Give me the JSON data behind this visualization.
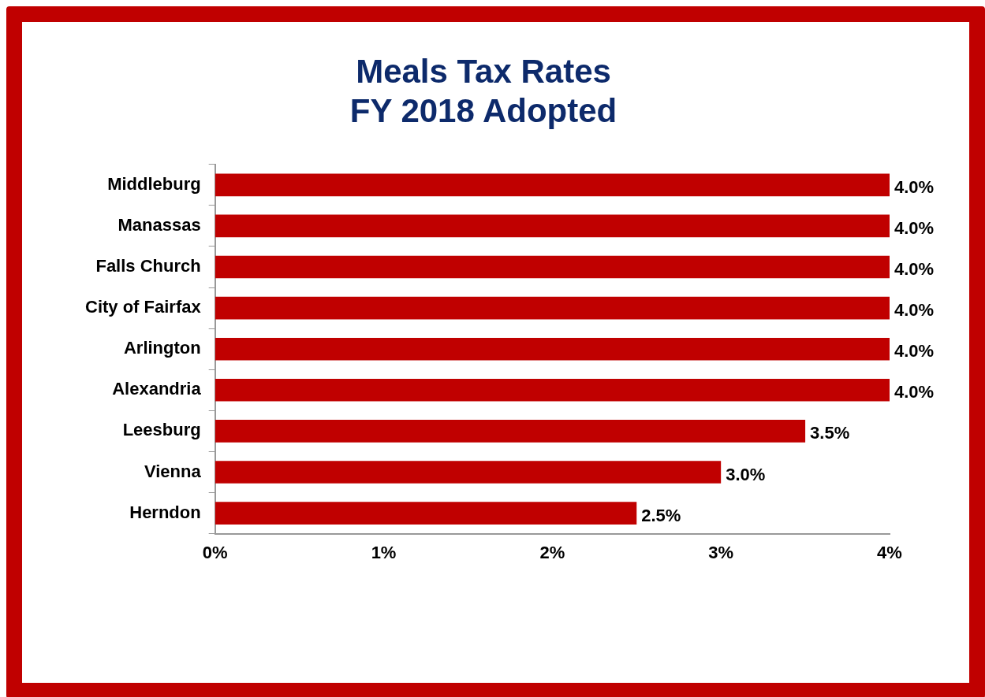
{
  "chart_data": {
    "type": "bar",
    "orientation": "horizontal",
    "title": "Meals Tax Rates\nFY 2018 Adopted",
    "categories": [
      "Middleburg",
      "Manassas",
      "Falls Church",
      "City of Fairfax",
      "Arlington",
      "Alexandria",
      "Leesburg",
      "Vienna",
      "Herndon"
    ],
    "values": [
      4,
      4,
      4,
      4,
      4,
      4,
      3.5,
      3,
      2.5
    ],
    "color": "#c00000",
    "value_labels": [
      "4.0%",
      "4.0%",
      "4.0%",
      "4.0%",
      "4.0%",
      "4.0%",
      "3.5%",
      "3.0%",
      "2.5%"
    ],
    "xlim": [
      0,
      4
    ],
    "xticks": [
      {
        "value": 0,
        "label": "0%"
      },
      {
        "value": 1,
        "label": "1%"
      },
      {
        "value": 2,
        "label": "2%"
      },
      {
        "value": 3,
        "label": "3%"
      },
      {
        "value": 4,
        "label": "4%"
      }
    ],
    "grid": false,
    "legend": false
  }
}
